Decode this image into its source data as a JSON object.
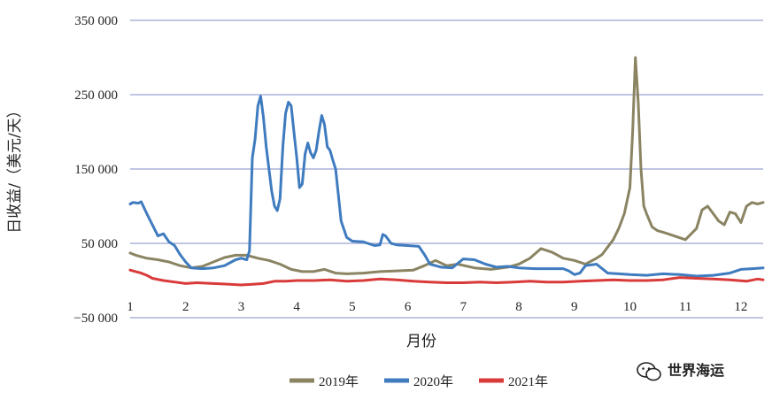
{
  "chart_data": {
    "type": "line",
    "title": "",
    "xlabel": "月份",
    "ylabel": "日收益/（美元/天）",
    "xlim": [
      1,
      12.4
    ],
    "ylim": [
      -50000,
      350000
    ],
    "yticks": [
      -50000,
      50000,
      150000,
      250000,
      350000
    ],
    "ytick_labels": [
      "−50 000",
      "50 000",
      "150 000",
      "250 000",
      "350 000"
    ],
    "xticks": [
      1,
      2,
      3,
      4,
      5,
      6,
      7,
      8,
      9,
      10,
      11,
      12
    ],
    "xtick_labels": [
      "1",
      "2",
      "3",
      "4",
      "5",
      "6",
      "7",
      "8",
      "9",
      "10",
      "11",
      "12"
    ],
    "grid": true,
    "legend_position": "bottom",
    "series": [
      {
        "name": "2019年",
        "color": "#8a8462",
        "x": [
          1,
          1.1,
          1.3,
          1.5,
          1.7,
          1.9,
          2.1,
          2.3,
          2.5,
          2.7,
          2.9,
          3.1,
          3.3,
          3.5,
          3.7,
          3.9,
          4.1,
          4.3,
          4.5,
          4.7,
          4.9,
          5.2,
          5.5,
          5.8,
          6.1,
          6.3,
          6.5,
          6.7,
          6.9,
          7.2,
          7.5,
          7.8,
          8.0,
          8.2,
          8.4,
          8.6,
          8.8,
          9.0,
          9.2,
          9.4,
          9.5,
          9.6,
          9.7,
          9.8,
          9.9,
          10.0,
          10.05,
          10.1,
          10.15,
          10.2,
          10.25,
          10.3,
          10.4,
          10.5,
          10.6,
          10.8,
          11.0,
          11.2,
          11.3,
          11.4,
          11.5,
          11.6,
          11.7,
          11.8,
          11.9,
          12.0,
          12.1,
          12.2,
          12.3,
          12.4
        ],
        "values": [
          37000,
          34000,
          30000,
          28000,
          25000,
          20000,
          17000,
          19000,
          25000,
          31000,
          34000,
          34000,
          30000,
          27000,
          22000,
          15000,
          12000,
          12000,
          15000,
          10000,
          9000,
          10000,
          12000,
          13000,
          14000,
          20000,
          27000,
          20000,
          22000,
          17000,
          15000,
          18000,
          22000,
          30000,
          43000,
          38000,
          30000,
          27000,
          22000,
          30000,
          35000,
          45000,
          55000,
          70000,
          90000,
          125000,
          200000,
          300000,
          240000,
          150000,
          100000,
          90000,
          72000,
          67000,
          65000,
          60000,
          55000,
          70000,
          95000,
          100000,
          90000,
          80000,
          75000,
          92000,
          90000,
          78000,
          100000,
          105000,
          103000,
          105000
        ]
      },
      {
        "name": "2020年",
        "color": "#3f7bbf",
        "x": [
          1,
          1.05,
          1.15,
          1.2,
          1.3,
          1.4,
          1.5,
          1.6,
          1.7,
          1.8,
          1.9,
          2.0,
          2.1,
          2.3,
          2.5,
          2.7,
          2.9,
          3.0,
          3.1,
          3.15,
          3.2,
          3.25,
          3.3,
          3.35,
          3.4,
          3.45,
          3.5,
          3.55,
          3.6,
          3.65,
          3.7,
          3.75,
          3.8,
          3.85,
          3.9,
          3.95,
          4.0,
          4.05,
          4.1,
          4.15,
          4.2,
          4.25,
          4.3,
          4.35,
          4.4,
          4.45,
          4.5,
          4.55,
          4.6,
          4.65,
          4.7,
          4.75,
          4.8,
          4.9,
          5.0,
          5.2,
          5.4,
          5.5,
          5.55,
          5.6,
          5.7,
          5.8,
          6.0,
          6.2,
          6.3,
          6.4,
          6.5,
          6.6,
          6.8,
          7.0,
          7.2,
          7.4,
          7.6,
          7.8,
          8.0,
          8.3,
          8.6,
          8.8,
          8.9,
          9.0,
          9.1,
          9.2,
          9.4,
          9.6,
          9.8,
          10.0,
          10.3,
          10.6,
          10.9,
          11.2,
          11.5,
          11.8,
          12.0,
          12.2,
          12.4
        ],
        "values": [
          103000,
          105000,
          104000,
          106000,
          90000,
          75000,
          60000,
          63000,
          52000,
          47000,
          35000,
          25000,
          17000,
          16000,
          17000,
          20000,
          28000,
          30000,
          28000,
          40000,
          165000,
          190000,
          235000,
          248000,
          220000,
          180000,
          150000,
          120000,
          100000,
          94000,
          110000,
          180000,
          225000,
          240000,
          235000,
          200000,
          165000,
          125000,
          130000,
          170000,
          185000,
          172000,
          165000,
          175000,
          200000,
          222000,
          210000,
          180000,
          175000,
          162000,
          150000,
          115000,
          80000,
          58000,
          53000,
          52000,
          47000,
          48000,
          62000,
          60000,
          50000,
          48000,
          47000,
          46000,
          35000,
          22000,
          20000,
          18000,
          17000,
          29000,
          28000,
          22000,
          18000,
          19000,
          17000,
          16000,
          16000,
          16000,
          13000,
          8000,
          10000,
          20000,
          22000,
          10000,
          9000,
          8000,
          7000,
          9000,
          8000,
          6000,
          7000,
          10000,
          15000,
          16000,
          17000
        ]
      },
      {
        "name": "2021年",
        "color": "#d93a3a",
        "x": [
          1,
          1.1,
          1.2,
          1.3,
          1.4,
          1.6,
          1.8,
          2.0,
          2.2,
          2.5,
          2.8,
          3.0,
          3.2,
          3.4,
          3.6,
          3.8,
          4.0,
          4.3,
          4.6,
          4.9,
          5.2,
          5.5,
          5.8,
          6.1,
          6.4,
          6.7,
          7.0,
          7.3,
          7.6,
          7.9,
          8.2,
          8.5,
          8.8,
          9.1,
          9.4,
          9.7,
          10.0,
          10.3,
          10.6,
          10.9,
          11.2,
          11.5,
          11.8,
          12.1,
          12.3,
          12.4
        ],
        "values": [
          14000,
          12000,
          10000,
          7000,
          3000,
          0,
          -2000,
          -4000,
          -3000,
          -4000,
          -5000,
          -6000,
          -5000,
          -4000,
          -1000,
          -1000,
          0,
          0,
          1000,
          -1000,
          0,
          2000,
          1000,
          -1000,
          -2000,
          -3000,
          -3000,
          -2000,
          -3000,
          -2000,
          -1000,
          -2000,
          -2000,
          -1000,
          0,
          1000,
          0,
          0,
          1000,
          4000,
          3000,
          2000,
          1000,
          -1000,
          2000,
          1000
        ]
      }
    ]
  },
  "watermark": {
    "text": "世界海运",
    "icon": "wechat-icon"
  }
}
